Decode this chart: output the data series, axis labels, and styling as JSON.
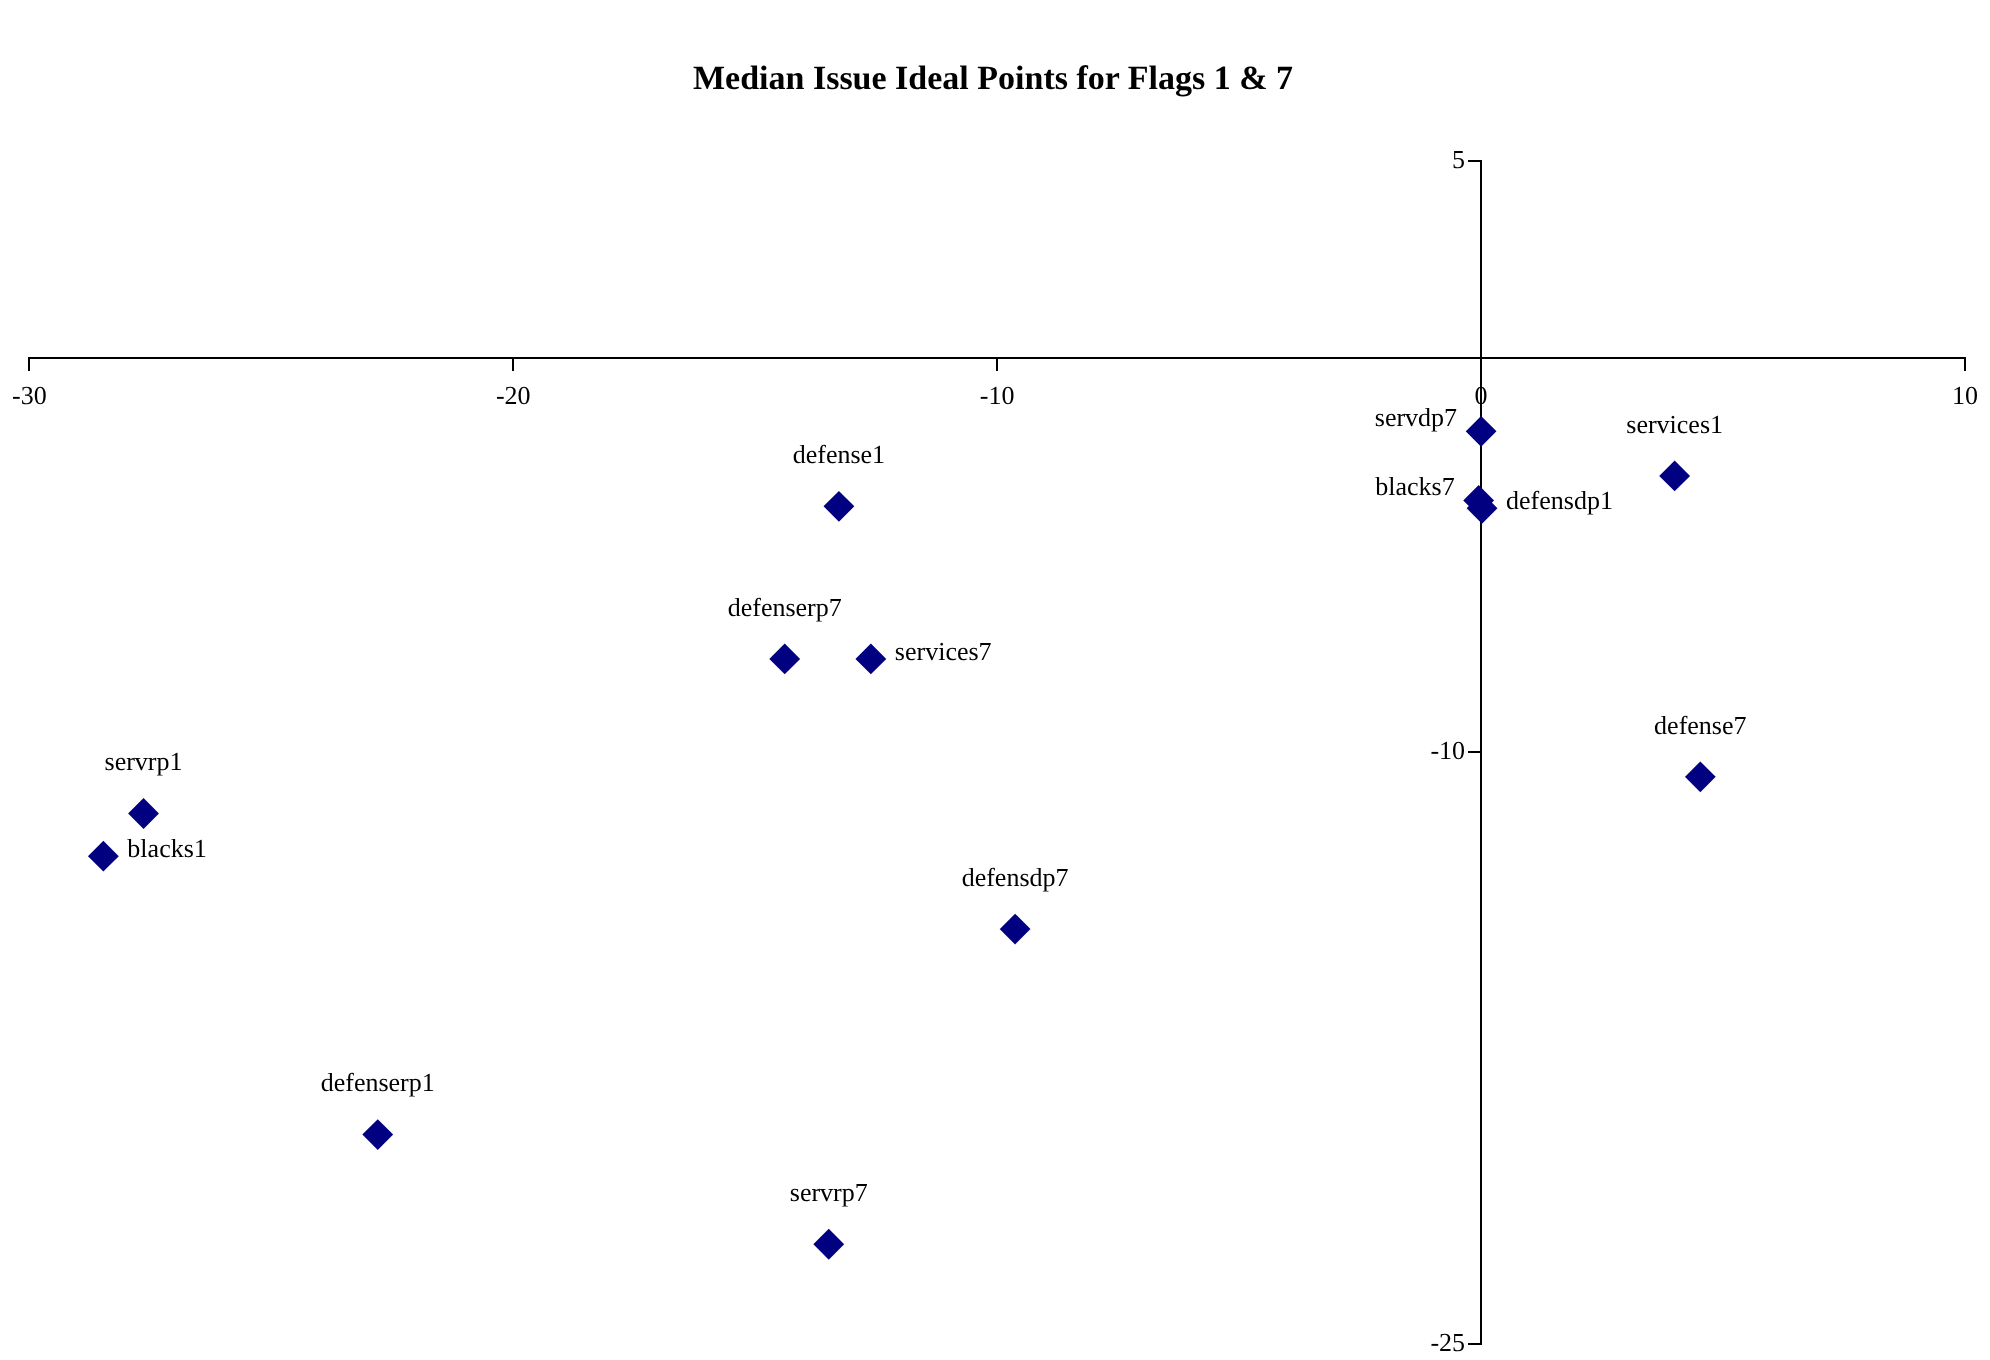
{
  "chart_data": {
    "type": "scatter",
    "title": "Median Issue Ideal Points for Flags 1 & 7",
    "x": [
      -13.27,
      -14.39,
      -12.61,
      -27.64,
      -28.47,
      -9.63,
      -22.8,
      -13.48,
      0,
      -0.05,
      0.02,
      4.0,
      4.53
    ],
    "values": [
      -3.76,
      -7.63,
      -7.63,
      -11.55,
      -12.63,
      -14.48,
      -19.69,
      -22.47,
      -1.86,
      -3.61,
      -3.81,
      -2.99,
      -10.62
    ],
    "color": "#000080",
    "marker": "diamond",
    "xlim": [
      -30,
      10
    ],
    "xticks": [
      -30,
      -20,
      -10,
      0,
      10
    ],
    "ylim": [
      -25,
      5
    ],
    "yticks": [
      5,
      -10,
      -25
    ],
    "grid": false,
    "legend": false,
    "annotations": [
      {
        "text": "defense1",
        "x": -13.27,
        "y": -3.76
      },
      {
        "text": "defenserp7",
        "x": -14.39,
        "y": -7.63
      },
      {
        "text": "services7",
        "x": -12.61,
        "y": -7.63
      },
      {
        "text": "servrp1",
        "x": -27.64,
        "y": -11.55
      },
      {
        "text": "blacks1",
        "x": -28.47,
        "y": -12.63
      },
      {
        "text": "defensdp7",
        "x": -9.63,
        "y": -14.48
      },
      {
        "text": "defenserp1",
        "x": -22.8,
        "y": -19.69
      },
      {
        "text": "servrp7",
        "x": -13.48,
        "y": -22.47
      },
      {
        "text": "servdp7",
        "x": 0,
        "y": -1.86
      },
      {
        "text": "blacks7",
        "x": -0.05,
        "y": -3.61
      },
      {
        "text": "defensdp1",
        "x": 0.02,
        "y": -3.81
      },
      {
        "text": "services1",
        "x": 4.0,
        "y": -2.99
      },
      {
        "text": "defense7",
        "x": 4.53,
        "y": -10.62
      }
    ]
  }
}
